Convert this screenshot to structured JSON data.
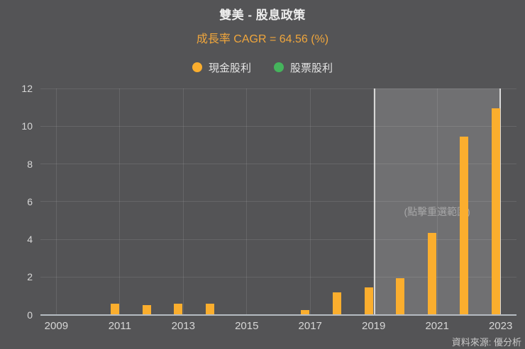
{
  "header": {
    "title": "雙美 - 股息政策",
    "subtitle": "成長率 CAGR = 64.56 (%)"
  },
  "chart_data": {
    "type": "bar",
    "title": "雙美 - 股息政策",
    "subtitle": "成長率 CAGR = 64.56 (%)",
    "categories": [
      "2009",
      "2010",
      "2011",
      "2012",
      "2013",
      "2014",
      "2015",
      "2016",
      "2017",
      "2018",
      "2019",
      "2020",
      "2021",
      "2022",
      "2023"
    ],
    "series": [
      {
        "name": "現金股利",
        "color": "#FBAE2E",
        "values": [
          0,
          0,
          0.6,
          0.5,
          0.6,
          0.6,
          0,
          0,
          0.25,
          1.2,
          1.45,
          1.95,
          4.35,
          9.45,
          10.95
        ]
      },
      {
        "name": "股票股利",
        "color": "#45B45C",
        "values": [
          0,
          0,
          0,
          0,
          0,
          0,
          0,
          0,
          0,
          0,
          0,
          0,
          0,
          0,
          0
        ]
      }
    ],
    "ylim": [
      0,
      12
    ],
    "y_ticks": [
      0,
      2,
      4,
      6,
      8,
      10,
      12
    ],
    "x_tick_labels": [
      "2009",
      "2011",
      "2013",
      "2015",
      "2017",
      "2019",
      "2021",
      "2023"
    ],
    "legend_position": "top",
    "grid": true,
    "selection": {
      "from": "2019",
      "to": "2023",
      "hint": "(點擊重選範圍)"
    }
  },
  "footer": {
    "source": "資料來源: 優分析"
  }
}
